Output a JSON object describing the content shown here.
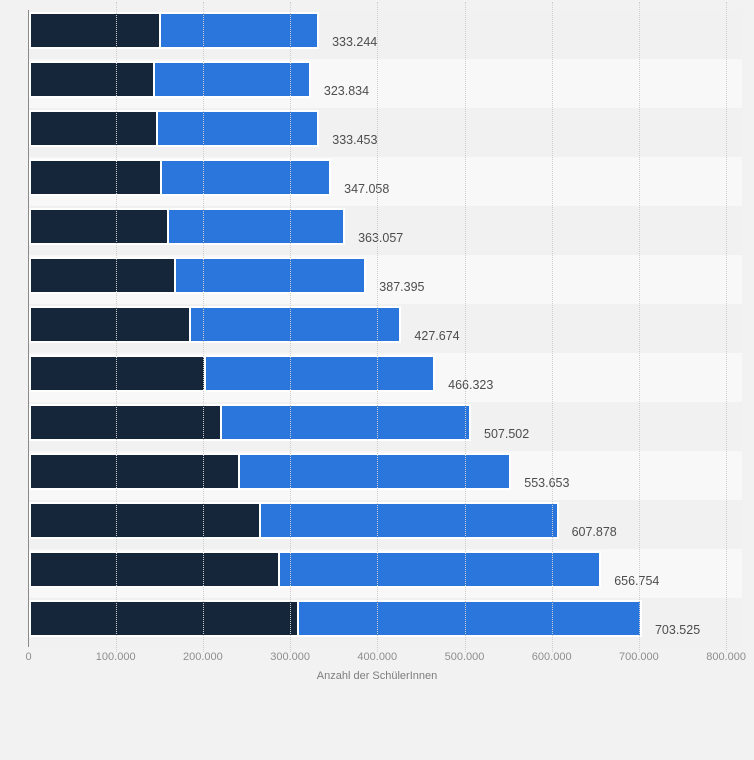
{
  "colors": {
    "page_background": "#f2f2f2",
    "stripe_dark": "#f1f1f2",
    "stripe_light": "#f8f8f8",
    "segment_dark_navy": "#15263a",
    "segment_blue": "#2b76dd",
    "gridline": "#cdcdcd",
    "axis_line": "#8a8a8a",
    "value_label": "#4d4d4d",
    "tick_label": "#8e8e8e",
    "axis_title": "#7d7d7d"
  },
  "chart_data": {
    "type": "bar",
    "subtype": "horizontal-stacked",
    "title": "",
    "xlabel": "Anzahl der SchülerInnen",
    "x_ticks": [
      "0",
      "100.000",
      "200.000",
      "300.000",
      "400.000",
      "500.000",
      "600.000",
      "700.000",
      "800.000"
    ],
    "xlim": [
      0,
      800000
    ],
    "grid": "vertical-dotted",
    "legend": "none",
    "categories_visible": false,
    "series": [
      {
        "name": "segment-dark-navy",
        "color": "#15263a",
        "values": [
          149800,
          142900,
          146300,
          151400,
          158900,
          167400,
          185000,
          202200,
          220500,
          240400,
          265300,
          286700,
          308500
        ]
      },
      {
        "name": "segment-blue",
        "color": "#2b76dd",
        "values": [
          183444,
          180934,
          187153,
          195658,
          204157,
          219995,
          242674,
          264123,
          287002,
          313253,
          342578,
          370054,
          395025
        ]
      }
    ],
    "totals": [
      333244,
      323834,
      333453,
      347058,
      363057,
      387395,
      427674,
      466323,
      507502,
      553653,
      607878,
      656754,
      703525
    ],
    "total_labels": [
      "333.244",
      "323.834",
      "333.453",
      "347.058",
      "363.057",
      "387.395",
      "427.674",
      "466.323",
      "507.502",
      "553.653",
      "607.878",
      "656.754",
      "703.525"
    ]
  }
}
